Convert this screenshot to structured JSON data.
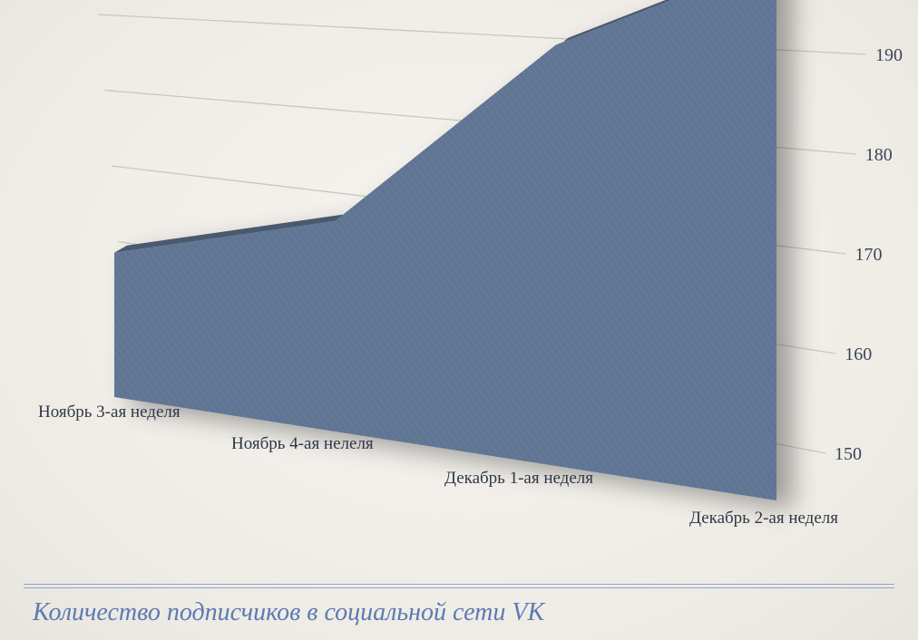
{
  "chart_data": {
    "type": "area",
    "title": "Количество подписчиков в социальной сети VK",
    "categories": [
      "Ноябрь 3-ая неделя",
      "Ноябрь 4-ая нелеля",
      "Декабрь 1-ая неделя",
      "Декабрь 2-ая неделя"
    ],
    "values": [
      166,
      170,
      185,
      190
    ],
    "ylim": [
      150,
      190
    ],
    "yticks": [
      "150",
      "160",
      "170",
      "180",
      "190"
    ],
    "grid": true,
    "style": "3d",
    "colors": {
      "area": "#5f7593",
      "area_top": "#4a5a70",
      "gridline": "#c9c7c3",
      "title": "#5c7ab1"
    }
  }
}
